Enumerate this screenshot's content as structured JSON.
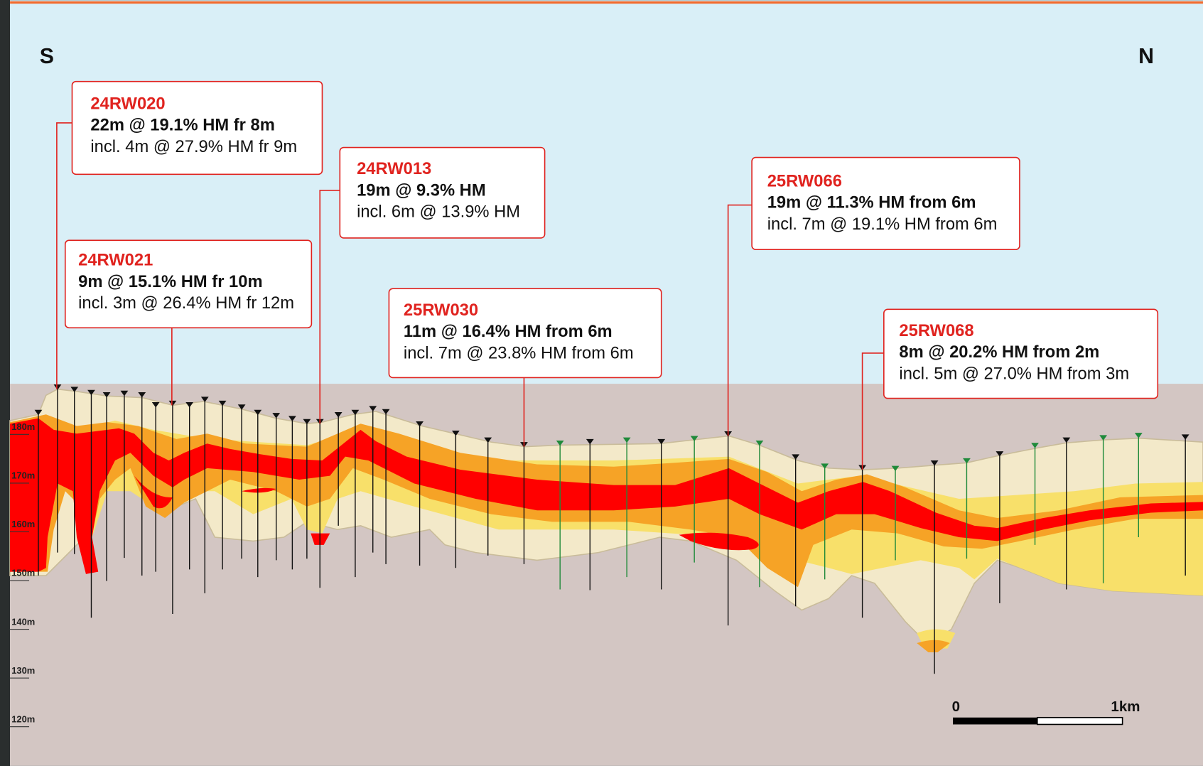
{
  "directions": {
    "south": "S",
    "north": "N"
  },
  "elevations": [
    "180m",
    "170m",
    "160m",
    "150m",
    "140m",
    "130m",
    "120m"
  ],
  "callouts": [
    {
      "hole": "24RW020",
      "result": "22m @ 19.1% HM fr 8m",
      "including": "incl. 4m @ 27.9% HM fr 9m"
    },
    {
      "hole": "24RW013",
      "result": "19m @ 9.3% HM",
      "including": "incl. 6m @ 13.9% HM"
    },
    {
      "hole": "24RW021",
      "result": "9m @ 15.1% HM fr 10m",
      "including": "incl. 3m @ 26.4% HM fr 12m"
    },
    {
      "hole": "25RW030",
      "result": "11m @ 16.4% HM from 6m",
      "including": "incl. 7m @ 23.8% HM from 6m"
    },
    {
      "hole": "25RW066",
      "result": "19m @ 11.3% HM from 6m",
      "including": "incl. 7m @ 19.1% HM from 6m"
    },
    {
      "hole": "25RW068",
      "result": "8m @ 20.2% HM from 2m",
      "including": "incl. 5m @ 27.0% HM from 3m"
    }
  ],
  "scale_bar": {
    "start": "0",
    "end": "1km"
  }
}
